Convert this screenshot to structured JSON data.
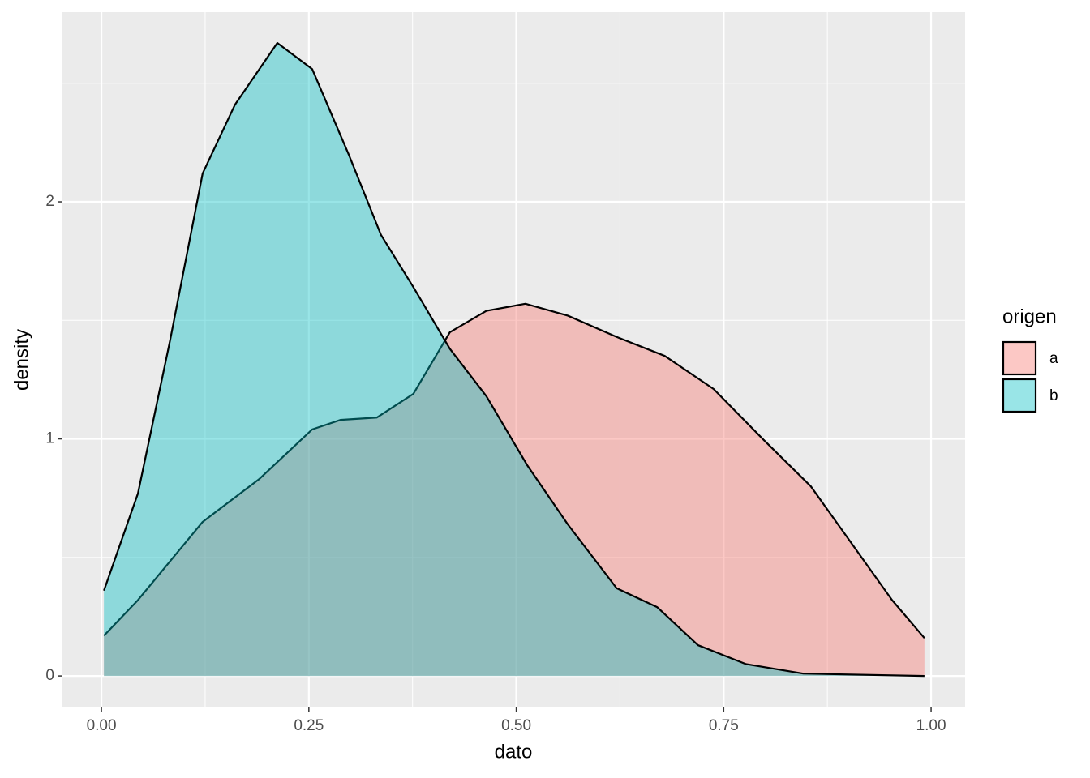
{
  "chart_data": {
    "type": "density",
    "x_label": "dato",
    "y_label": "density",
    "legend_title": "origen",
    "legend": "right",
    "grid": true,
    "xlim": [
      -0.047,
      1.041
    ],
    "ylim": [
      -0.133,
      2.8
    ],
    "xticks": [
      {
        "value": 0,
        "label": "0.00"
      },
      {
        "value": 0.25,
        "label": "0.25"
      },
      {
        "value": 0.5,
        "label": "0.50"
      },
      {
        "value": 0.75,
        "label": "0.75"
      },
      {
        "value": 1,
        "label": "1.00"
      }
    ],
    "yticks": [
      0,
      1,
      2
    ],
    "series": [
      {
        "name": "a",
        "color": "#F8766D",
        "x": [
          0.003,
          0.044,
          0.122,
          0.19,
          0.254,
          0.288,
          0.332,
          0.376,
          0.42,
          0.464,
          0.511,
          0.562,
          0.621,
          0.679,
          0.738,
          0.797,
          0.855,
          0.904,
          0.953,
          0.992
        ],
        "values": [
          0.17,
          0.32,
          0.65,
          0.83,
          1.04,
          1.08,
          1.09,
          1.19,
          1.45,
          1.54,
          1.57,
          1.52,
          1.43,
          1.35,
          1.21,
          1.0,
          0.8,
          0.56,
          0.32,
          0.16
        ]
      },
      {
        "name": "b",
        "color": "#00BFC4",
        "x": [
          0.003,
          0.044,
          0.083,
          0.122,
          0.161,
          0.212,
          0.254,
          0.298,
          0.337,
          0.376,
          0.42,
          0.464,
          0.513,
          0.562,
          0.621,
          0.67,
          0.719,
          0.777,
          0.846,
          0.992
        ],
        "values": [
          0.36,
          0.77,
          1.42,
          2.12,
          2.41,
          2.67,
          2.56,
          2.2,
          1.86,
          1.64,
          1.38,
          1.18,
          0.89,
          0.64,
          0.37,
          0.29,
          0.13,
          0.05,
          0.01,
          0.0
        ]
      }
    ]
  }
}
